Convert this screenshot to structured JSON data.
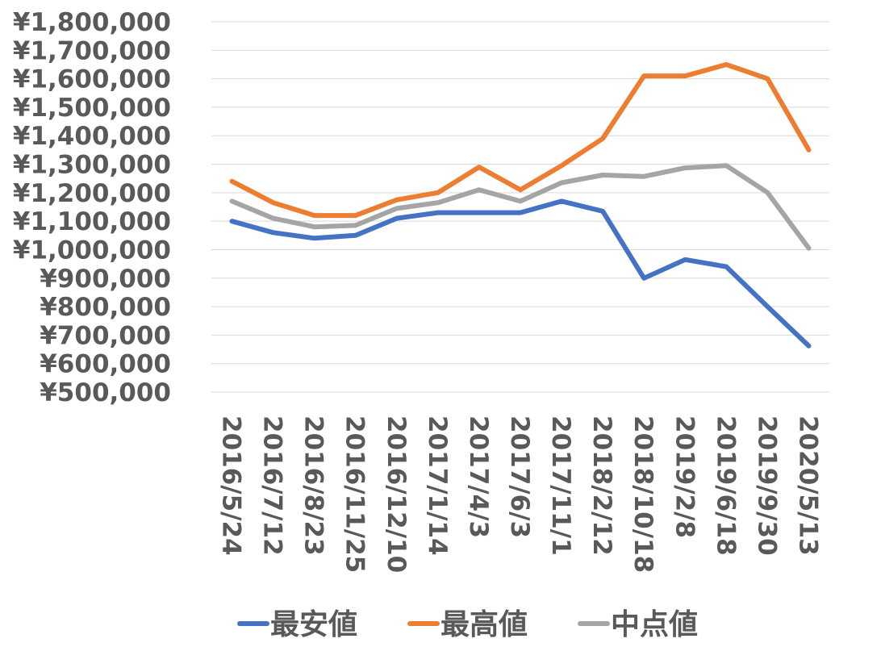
{
  "chart_data": {
    "type": "line",
    "title": "",
    "xlabel": "",
    "ylabel": "",
    "ylim": [
      500000,
      1800000
    ],
    "y_ticks": [
      1800000,
      1700000,
      1600000,
      1500000,
      1400000,
      1300000,
      1200000,
      1100000,
      1000000,
      900000,
      800000,
      700000,
      600000,
      500000
    ],
    "y_tick_labels": [
      "¥1,800,000",
      "¥1,700,000",
      "¥1,600,000",
      "¥1,500,000",
      "¥1,400,000",
      "¥1,300,000",
      "¥1,200,000",
      "¥1,100,000",
      "¥1,000,000",
      "¥900,000",
      "¥800,000",
      "¥700,000",
      "¥600,000",
      "¥500,000"
    ],
    "grid": true,
    "legend_position": "bottom",
    "categories": [
      "2016/5/24",
      "2016/7/12",
      "2016/8/23",
      "2016/11/25",
      "2016/12/10",
      "2017/1/14",
      "2017/4/3",
      "2017/6/3",
      "2017/11/1",
      "2018/2/12",
      "2018/10/18",
      "2019/2/8",
      "2019/6/18",
      "2019/9/30",
      "2020/5/13"
    ],
    "series": [
      {
        "name": "最安値",
        "color": "#4472C4",
        "values": [
          1100000,
          1060000,
          1040000,
          1050000,
          1110000,
          1130000,
          1130000,
          1130000,
          1170000,
          1135000,
          900000,
          965000,
          940000,
          800000,
          662000
        ]
      },
      {
        "name": "最高値",
        "color": "#ED7D31",
        "values": [
          1240000,
          1165000,
          1120000,
          1120000,
          1175000,
          1200000,
          1290000,
          1210000,
          1295000,
          1390000,
          1610000,
          1610000,
          1650000,
          1600000,
          1350000
        ]
      },
      {
        "name": "中点値",
        "color": "#A5A5A5",
        "values": [
          1170000,
          1110000,
          1080000,
          1085000,
          1145000,
          1165000,
          1210000,
          1170000,
          1235000,
          1262000,
          1257000,
          1287000,
          1295000,
          1200000,
          1005000
        ]
      }
    ]
  }
}
